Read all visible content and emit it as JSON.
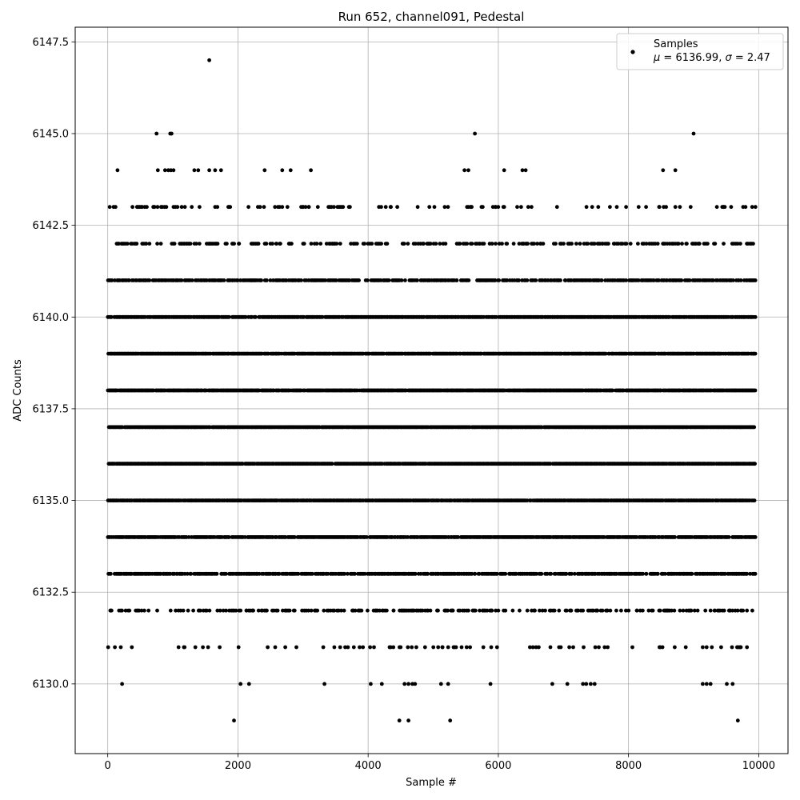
{
  "chart_data": {
    "type": "scatter",
    "title": "Run 652, channel091, Pedestal",
    "xlabel": "Sample #",
    "ylabel": "ADC Counts",
    "xlim": [
      -500,
      10450
    ],
    "ylim": [
      6128.1,
      6147.9
    ],
    "x_ticks": [
      0,
      2000,
      4000,
      6000,
      8000,
      10000
    ],
    "y_ticks": [
      6130.0,
      6132.5,
      6135.0,
      6137.5,
      6140.0,
      6142.5,
      6145.0,
      6147.5
    ],
    "grid": true,
    "legend": {
      "placement": "top-right",
      "entries": [
        {
          "name": "Samples",
          "stats": "μ = 6136.99, σ = 2.47",
          "stats_mu": "μ",
          "stats_mu_value": " = 6136.99, ",
          "stats_sigma": "σ",
          "stats_sigma_value": " = 2.47"
        }
      ]
    },
    "marker_color": "#000000",
    "sample_count": 10000,
    "series": [
      {
        "name": "Samples",
        "levels": [
          {
            "y": 6140,
            "density": 0.9
          },
          {
            "y": 6139,
            "density": 0.92
          },
          {
            "y": 6138,
            "density": 0.94
          },
          {
            "y": 6137,
            "density": 0.96
          },
          {
            "y": 6136,
            "density": 0.95
          },
          {
            "y": 6135,
            "density": 0.93
          },
          {
            "y": 6134,
            "density": 0.85
          },
          {
            "y": 6133,
            "density": 0.7
          },
          {
            "y": 6141,
            "density": 0.62
          },
          {
            "y": 6142,
            "density": 0.32
          },
          {
            "y": 6132,
            "density": 0.28
          },
          {
            "y": 6143,
            "density": 0.12
          },
          {
            "y": 6131,
            "density": 0.06
          }
        ],
        "points": [
          [
            1560,
            6147
          ],
          [
            750,
            6145
          ],
          [
            960,
            6145
          ],
          [
            980,
            6145
          ],
          [
            5640,
            6145
          ],
          [
            9000,
            6145
          ],
          [
            150,
            6144
          ],
          [
            770,
            6144
          ],
          [
            880,
            6144
          ],
          [
            930,
            6144
          ],
          [
            970,
            6144
          ],
          [
            1010,
            6144
          ],
          [
            1330,
            6144
          ],
          [
            1390,
            6144
          ],
          [
            1560,
            6144
          ],
          [
            1650,
            6144
          ],
          [
            1740,
            6144
          ],
          [
            2410,
            6144
          ],
          [
            2680,
            6144
          ],
          [
            2810,
            6144
          ],
          [
            3120,
            6144
          ],
          [
            5480,
            6144
          ],
          [
            5540,
            6144
          ],
          [
            6090,
            6144
          ],
          [
            6370,
            6144
          ],
          [
            6420,
            6144
          ],
          [
            8530,
            6144
          ],
          [
            8720,
            6144
          ],
          [
            30,
            6143
          ],
          [
            90,
            6143
          ],
          [
            120,
            6143
          ],
          [
            380,
            6143
          ],
          [
            450,
            6143
          ],
          [
            480,
            6143
          ],
          [
            520,
            6143
          ],
          [
            600,
            6143
          ],
          [
            700,
            6143
          ],
          [
            820,
            6143
          ],
          [
            900,
            6143
          ],
          [
            1010,
            6143
          ],
          [
            1290,
            6143
          ],
          [
            1410,
            6143
          ],
          [
            1650,
            6143
          ],
          [
            1880,
            6143
          ],
          [
            2340,
            6143
          ],
          [
            2400,
            6143
          ],
          [
            2640,
            6143
          ],
          [
            2680,
            6143
          ],
          [
            3000,
            6143
          ],
          [
            3040,
            6143
          ],
          [
            3090,
            6143
          ],
          [
            3410,
            6143
          ],
          [
            3530,
            6143
          ],
          [
            4350,
            6143
          ],
          [
            4940,
            6143
          ],
          [
            5520,
            6143
          ],
          [
            5580,
            6143
          ],
          [
            5760,
            6143
          ],
          [
            5960,
            6143
          ],
          [
            6090,
            6143
          ],
          [
            6290,
            6143
          ],
          [
            6350,
            6143
          ],
          [
            6460,
            6143
          ],
          [
            6510,
            6143
          ],
          [
            8270,
            6143
          ],
          [
            8470,
            6143
          ],
          [
            8540,
            6143
          ],
          [
            8720,
            6143
          ],
          [
            8790,
            6143
          ],
          [
            9440,
            6143
          ],
          [
            9460,
            6143
          ],
          [
            9760,
            6143
          ],
          [
            9900,
            6143
          ],
          [
            9950,
            6143
          ],
          [
            5410,
            6132
          ],
          [
            5480,
            6132
          ],
          [
            5540,
            6132
          ],
          [
            5620,
            6132
          ],
          [
            5760,
            6132
          ],
          [
            5900,
            6132
          ],
          [
            6000,
            6132
          ],
          [
            6560,
            6132
          ],
          [
            6720,
            6132
          ],
          [
            6840,
            6132
          ],
          [
            7050,
            6132
          ],
          [
            7120,
            6132
          ],
          [
            7220,
            6132
          ],
          [
            7300,
            6132
          ],
          [
            7380,
            6132
          ],
          [
            7460,
            6132
          ],
          [
            7520,
            6132
          ],
          [
            7600,
            6132
          ],
          [
            7720,
            6132
          ],
          [
            7960,
            6132
          ],
          [
            8130,
            6132
          ],
          [
            8310,
            6132
          ],
          [
            8470,
            6132
          ],
          [
            8600,
            6132
          ],
          [
            8790,
            6132
          ],
          [
            8890,
            6132
          ],
          [
            9180,
            6132
          ],
          [
            9260,
            6132
          ],
          [
            9440,
            6132
          ],
          [
            9560,
            6132
          ],
          [
            9640,
            6132
          ],
          [
            9730,
            6132
          ],
          [
            9820,
            6132
          ],
          [
            2590,
            6132
          ],
          [
            3180,
            6132
          ],
          [
            3320,
            6132
          ],
          [
            3460,
            6132
          ],
          [
            3630,
            6132
          ],
          [
            3770,
            6132
          ],
          [
            3850,
            6132
          ],
          [
            3990,
            6132
          ],
          [
            4120,
            6132
          ],
          [
            4230,
            6132
          ],
          [
            4390,
            6132
          ],
          [
            4520,
            6132
          ],
          [
            4680,
            6132
          ],
          [
            4810,
            6132
          ],
          [
            4920,
            6132
          ],
          [
            5060,
            6132
          ],
          [
            5190,
            6132
          ],
          [
            5300,
            6132
          ],
          [
            40,
            6132
          ],
          [
            760,
            6132
          ],
          [
            1400,
            6132
          ],
          [
            2040,
            6132
          ],
          [
            2130,
            6132
          ],
          [
            2230,
            6132
          ],
          [
            110,
            6131
          ],
          [
            200,
            6131
          ],
          [
            1170,
            6131
          ],
          [
            1720,
            6131
          ],
          [
            2010,
            6131
          ],
          [
            3480,
            6131
          ],
          [
            3570,
            6131
          ],
          [
            3690,
            6131
          ],
          [
            3780,
            6131
          ],
          [
            3920,
            6131
          ],
          [
            4030,
            6131
          ],
          [
            4090,
            6131
          ],
          [
            4330,
            6131
          ],
          [
            4500,
            6131
          ],
          [
            4610,
            6131
          ],
          [
            4670,
            6131
          ],
          [
            4740,
            6131
          ],
          [
            5140,
            6131
          ],
          [
            5230,
            6131
          ],
          [
            5350,
            6131
          ],
          [
            5890,
            6131
          ],
          [
            6620,
            6131
          ],
          [
            6800,
            6131
          ],
          [
            6960,
            6131
          ],
          [
            7090,
            6131
          ],
          [
            7150,
            6131
          ],
          [
            7310,
            6131
          ],
          [
            7490,
            6131
          ],
          [
            7680,
            6131
          ],
          [
            8060,
            6131
          ],
          [
            8710,
            6131
          ],
          [
            8880,
            6131
          ],
          [
            9140,
            6131
          ],
          [
            9200,
            6131
          ],
          [
            9280,
            6131
          ],
          [
            9590,
            6131
          ],
          [
            9680,
            6131
          ],
          [
            9710,
            6131
          ],
          [
            9820,
            6131
          ],
          [
            220,
            6130
          ],
          [
            2040,
            6130
          ],
          [
            2170,
            6130
          ],
          [
            3330,
            6130
          ],
          [
            4040,
            6130
          ],
          [
            4210,
            6130
          ],
          [
            4560,
            6130
          ],
          [
            4620,
            6130
          ],
          [
            4680,
            6130
          ],
          [
            4720,
            6130
          ],
          [
            5120,
            6130
          ],
          [
            5230,
            6130
          ],
          [
            5880,
            6130
          ],
          [
            6830,
            6130
          ],
          [
            7060,
            6130
          ],
          [
            7300,
            6130
          ],
          [
            7350,
            6130
          ],
          [
            7420,
            6130
          ],
          [
            7480,
            6130
          ],
          [
            9140,
            6130
          ],
          [
            9200,
            6130
          ],
          [
            9260,
            6130
          ],
          [
            9510,
            6130
          ],
          [
            9600,
            6130
          ],
          [
            1940,
            6129
          ],
          [
            4480,
            6129
          ],
          [
            4620,
            6129
          ],
          [
            5260,
            6129
          ],
          [
            9680,
            6129
          ]
        ]
      }
    ]
  }
}
